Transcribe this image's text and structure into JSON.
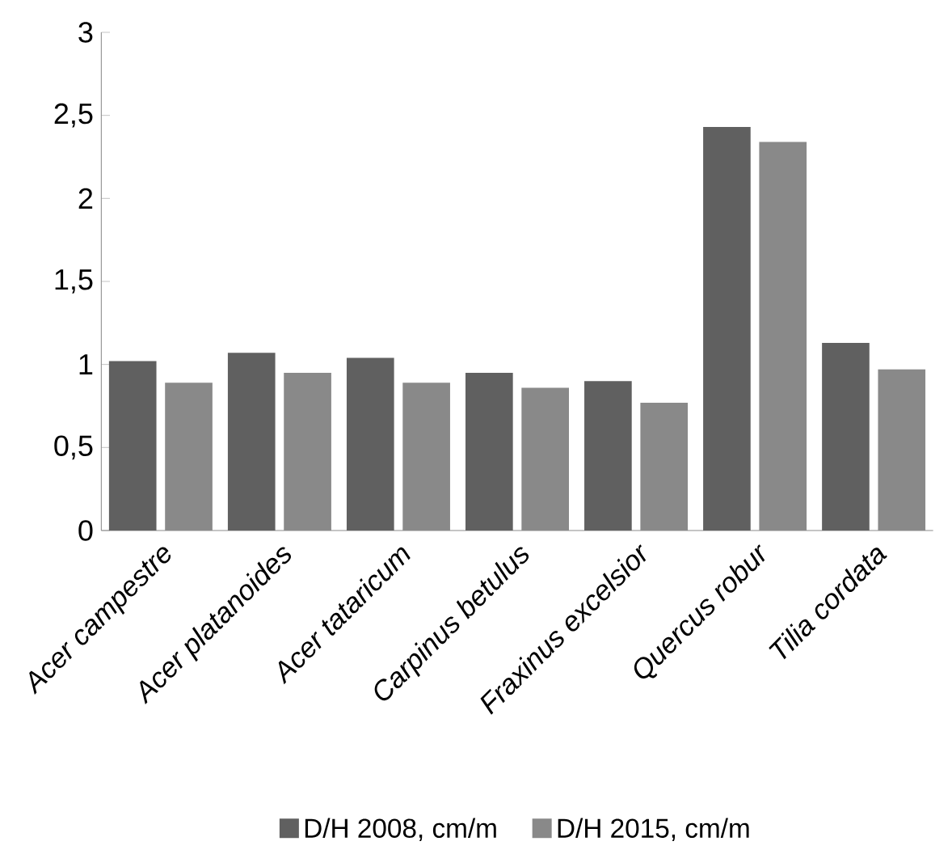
{
  "chart_data": {
    "type": "bar",
    "categories": [
      "Acer campestre",
      "Acer platanoides",
      "Acer tataricum",
      "Carpinus betulus",
      "Fraxinus excelsior",
      "Quercus robur",
      "Tilia cordata"
    ],
    "series": [
      {
        "name": "D/H 2008, cm/m",
        "color": "#606060",
        "values": [
          1.02,
          1.07,
          1.04,
          0.95,
          0.9,
          2.43,
          1.13
        ]
      },
      {
        "name": "D/H 2015, cm/m",
        "color": "#898989",
        "values": [
          0.89,
          0.95,
          0.89,
          0.86,
          0.77,
          2.34,
          0.97
        ]
      }
    ],
    "ylim": [
      0,
      3
    ],
    "yticks": [
      0,
      {
        "value": 0.5,
        "label": "0,5"
      },
      1,
      {
        "value": 1.5,
        "label": "1,5"
      },
      2,
      {
        "value": 2.5,
        "label": "2,5"
      },
      3
    ],
    "grid": false,
    "legend": "bottom"
  }
}
